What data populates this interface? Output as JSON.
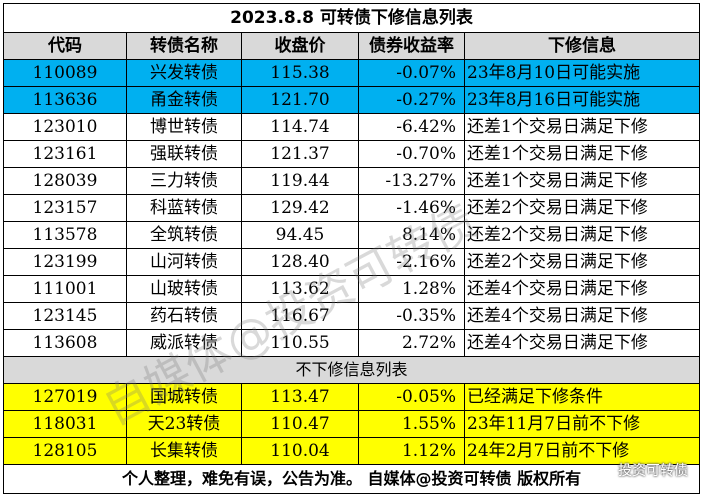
{
  "title": "2023.8.8 可转债下修信息列表",
  "headers": [
    "代码",
    "转债名称",
    "收盘价",
    "债券收益率",
    "下修信息"
  ],
  "rows": [
    {
      "code": "110089",
      "name": "兴发转债",
      "price": "115.38",
      "yield": "-0.07%",
      "info": "23年8月10日可能实施",
      "highlight": "blue"
    },
    {
      "code": "113636",
      "name": "甬金转债",
      "price": "121.70",
      "yield": "-0.27%",
      "info": "23年8月16日可能实施",
      "highlight": "blue"
    },
    {
      "code": "123010",
      "name": "博世转债",
      "price": "114.74",
      "yield": "-6.42%",
      "info": "还差1个交易日满足下修",
      "highlight": "white"
    },
    {
      "code": "123161",
      "name": "强联转债",
      "price": "121.37",
      "yield": "-0.70%",
      "info": "还差1个交易日满足下修",
      "highlight": "white"
    },
    {
      "code": "128039",
      "name": "三力转债",
      "price": "119.44",
      "yield": "-13.27%",
      "info": "还差1个交易日满足下修",
      "highlight": "white"
    },
    {
      "code": "123157",
      "name": "科蓝转债",
      "price": "129.42",
      "yield": "-1.46%",
      "info": "还差2个交易日满足下修",
      "highlight": "white"
    },
    {
      "code": "113578",
      "name": "全筑转债",
      "price": "94.45",
      "yield": "8.14%",
      "info": "还差2个交易日满足下修",
      "highlight": "white"
    },
    {
      "code": "123199",
      "name": "山河转债",
      "price": "128.40",
      "yield": "-2.16%",
      "info": "还差2个交易日满足下修",
      "highlight": "white"
    },
    {
      "code": "111001",
      "name": "山玻转债",
      "price": "113.62",
      "yield": "1.28%",
      "info": "还差4个交易日满足下修",
      "highlight": "white"
    },
    {
      "code": "123145",
      "name": "药石转债",
      "price": "116.67",
      "yield": "-0.35%",
      "info": "还差4个交易日满足下修",
      "highlight": "white"
    },
    {
      "code": "113608",
      "name": "威派转债",
      "price": "110.55",
      "yield": "2.72%",
      "info": "还差4个交易日满足下修",
      "highlight": "white"
    }
  ],
  "no_revision_title": "不下修信息列表",
  "no_revision_rows": [
    {
      "code": "127019",
      "name": "国城转债",
      "price": "113.47",
      "yield": "-0.05%",
      "info": "已经满足下修条件",
      "highlight": "yellow"
    },
    {
      "code": "118031",
      "name": "天23转债",
      "price": "110.47",
      "yield": "1.55%",
      "info": "23年11月7日前不下修",
      "highlight": "yellow"
    },
    {
      "code": "128105",
      "name": "长集转债",
      "price": "110.04",
      "yield": "1.12%",
      "info": "24年2月7日前不下修",
      "highlight": "yellow"
    }
  ],
  "footer": "个人整理，难免有误，公告为准。 自媒体@投资可转债 版权所有",
  "watermark_text": "自媒体@投资可转债",
  "corner_mark_text": "投资可转债",
  "colors": {
    "blue": "#00b0f0",
    "yellow": "#ffff00",
    "header_gray": "#d9d9d9"
  }
}
